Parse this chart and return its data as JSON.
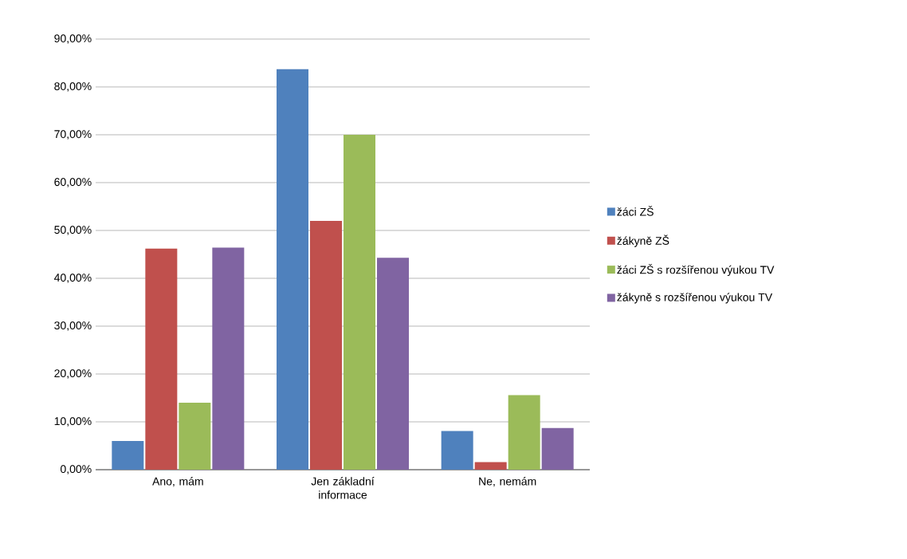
{
  "chart_data": {
    "type": "bar",
    "categories": [
      "Ano, mám",
      "Jen základní informace",
      "Ne, nemám"
    ],
    "series": [
      {
        "name": "žáci ZŠ",
        "color": "#4f81bd",
        "values": [
          6.0,
          83.7,
          8.1
        ]
      },
      {
        "name": "žákyně ZŠ",
        "color": "#c0504d",
        "values": [
          46.2,
          52.0,
          1.6
        ]
      },
      {
        "name": "žáci ZŠ s rozšířenou výukou TV",
        "color": "#9bbb59",
        "values": [
          14.0,
          70.0,
          15.6
        ]
      },
      {
        "name": "žákyně s rozšířenou výukou TV",
        "color": "#8064a2",
        "values": [
          46.4,
          44.3,
          8.7
        ]
      }
    ],
    "ylim": [
      0,
      90
    ],
    "yticks": [
      {
        "value": 0,
        "label": "0,00%"
      },
      {
        "value": 10,
        "label": "10,00%"
      },
      {
        "value": 20,
        "label": "20,00%"
      },
      {
        "value": 30,
        "label": "30,00%"
      },
      {
        "value": 40,
        "label": "40,00%"
      },
      {
        "value": 50,
        "label": "50,00%"
      },
      {
        "value": 60,
        "label": "60,00%"
      },
      {
        "value": 70,
        "label": "70,00%"
      },
      {
        "value": 80,
        "label": "80,00%"
      },
      {
        "value": 90,
        "label": "90,00%"
      }
    ],
    "grid": "y",
    "legend": "right"
  }
}
